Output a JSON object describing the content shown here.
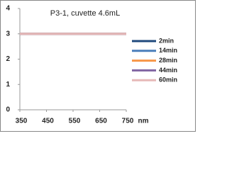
{
  "chart_data": {
    "type": "line",
    "title": "P3-1, cuvette 4.6mL",
    "x_label": "nm",
    "x": [
      350,
      450,
      550,
      650,
      750
    ],
    "series": [
      {
        "name": "2min",
        "color": "#1f497d",
        "values": [
          3,
          3,
          3,
          3,
          3
        ]
      },
      {
        "name": "14min",
        "color": "#4a7ebb",
        "values": [
          3,
          3,
          3,
          3,
          3
        ]
      },
      {
        "name": "28min",
        "color": "#f79646",
        "values": [
          3,
          3,
          3,
          3,
          3
        ]
      },
      {
        "name": "44min",
        "color": "#8064a2",
        "values": [
          3,
          3,
          3,
          3,
          3
        ]
      },
      {
        "name": "60min",
        "color": "#e6b9b8",
        "values": [
          3,
          3,
          3,
          3,
          3
        ]
      }
    ],
    "xlim": [
      350,
      750
    ],
    "xticks": [
      350,
      450,
      550,
      650,
      750
    ],
    "ylim": [
      0,
      4
    ],
    "yticks": [
      0,
      1,
      2,
      3,
      4
    ],
    "grid": false,
    "legend": "right"
  }
}
